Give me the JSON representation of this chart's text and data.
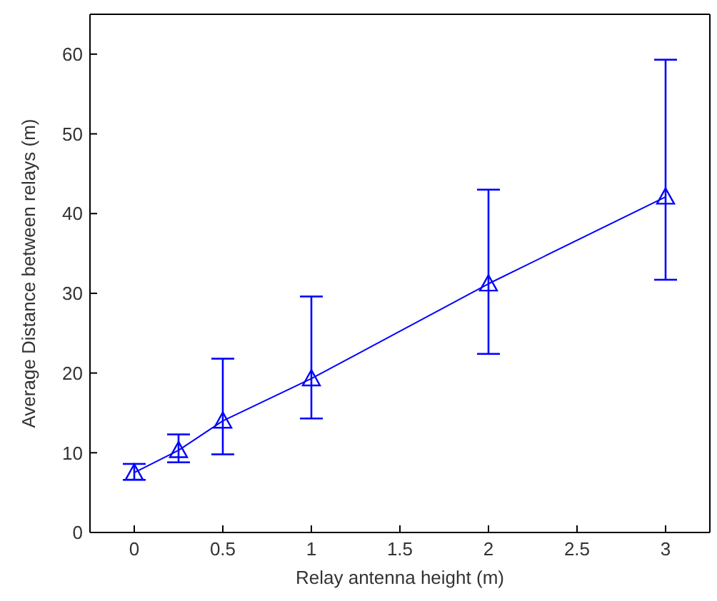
{
  "chart_data": {
    "type": "line",
    "xlabel": "Relay antenna height (m)",
    "ylabel": "Average Distance between relays (m)",
    "x": [
      0,
      0.25,
      0.5,
      1,
      2,
      3
    ],
    "series": [
      {
        "color": "#0000ff",
        "values": [
          7.5,
          10.3,
          14,
          19.3,
          31.2,
          42.1
        ],
        "errors": [
          [
            6.6,
            8.6
          ],
          [
            8.8,
            12.3
          ],
          [
            9.8,
            21.8
          ],
          [
            14.3,
            29.6
          ],
          [
            22.4,
            43
          ],
          [
            31.7,
            59.3
          ]
        ]
      }
    ],
    "xlim": [
      -0.25,
      3.25
    ],
    "xticks": [
      0,
      0.5,
      1,
      1.5,
      2,
      2.5,
      3
    ],
    "ylim": [
      0,
      65
    ],
    "yticks": [
      0,
      10,
      20,
      30,
      40,
      50,
      60
    ],
    "marker": "triangle",
    "grid": false
  }
}
